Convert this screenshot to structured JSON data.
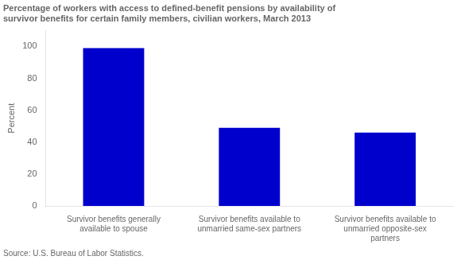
{
  "chart_data": {
    "type": "bar",
    "title": "Percentage of workers with access to defined-benefit pensions by availability of\nsurvivor benefits for certain family members, civilian workers, March 2013",
    "categories": [
      "Survivor benefits generally\navailable to spouse",
      "Survivor benefits available to\nunmarried same-sex partners",
      "Survivor benefits available to\nunmarried opposite-sex\npartners"
    ],
    "values": [
      99,
      49,
      46
    ],
    "color": "#0000CD",
    "ylabel": "Percent",
    "ylim": [
      0,
      110
    ],
    "yticks": [
      0,
      20,
      40,
      60,
      80,
      100
    ],
    "grid": false,
    "annotation": "Source: U.S. Bureau of Labor Statistics."
  }
}
